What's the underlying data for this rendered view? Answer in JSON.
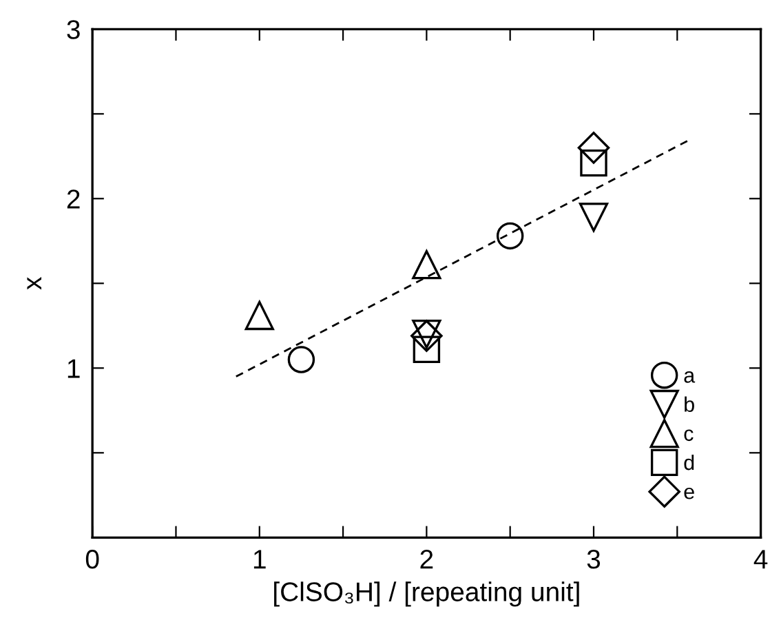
{
  "chart_data": {
    "type": "scatter",
    "xlabel": "[ClSO₃H] / [repeating unit]",
    "ylabel": "x",
    "xlim": [
      0,
      4
    ],
    "ylim": [
      0,
      3
    ],
    "xticks": [
      0,
      {
        "value": 0.5,
        "label": null
      },
      1,
      {
        "value": 1.5,
        "label": null
      },
      2,
      {
        "value": 2.5,
        "label": null
      },
      3,
      {
        "value": 3.5,
        "label": null
      },
      4
    ],
    "yticks": [
      {
        "value": 0,
        "label": null
      },
      {
        "value": 0.5,
        "label": null
      },
      1,
      {
        "value": 1.5,
        "label": null
      },
      2,
      {
        "value": 2.5,
        "label": null
      },
      3
    ],
    "grid": false,
    "legend": "bottom right",
    "series": [
      {
        "name": "a",
        "color": "#000000",
        "marker": "circle",
        "x": [
          1.25,
          2.5
        ],
        "values": [
          1.05,
          1.78
        ]
      },
      {
        "name": "b",
        "color": "#000000",
        "marker": "triangle_down",
        "x": [
          2,
          3
        ],
        "values": [
          1.2,
          1.89
        ]
      },
      {
        "name": "c",
        "color": "#000000",
        "marker": "triangle",
        "x": [
          1,
          2
        ],
        "values": [
          1.31,
          1.61
        ]
      },
      {
        "name": "d",
        "color": "#000000",
        "marker": "square",
        "x": [
          2,
          3
        ],
        "values": [
          1.11,
          2.21
        ]
      },
      {
        "name": "e",
        "color": "#000000",
        "marker": "diamond",
        "x": [
          2,
          3
        ],
        "values": [
          1.19,
          2.3
        ]
      },
      {
        "type": "line",
        "color": "#000000",
        "line_style": "dashed",
        "marker": "none",
        "x": [
          0.86,
          3.56
        ],
        "values": [
          0.95,
          2.34
        ]
      }
    ]
  }
}
